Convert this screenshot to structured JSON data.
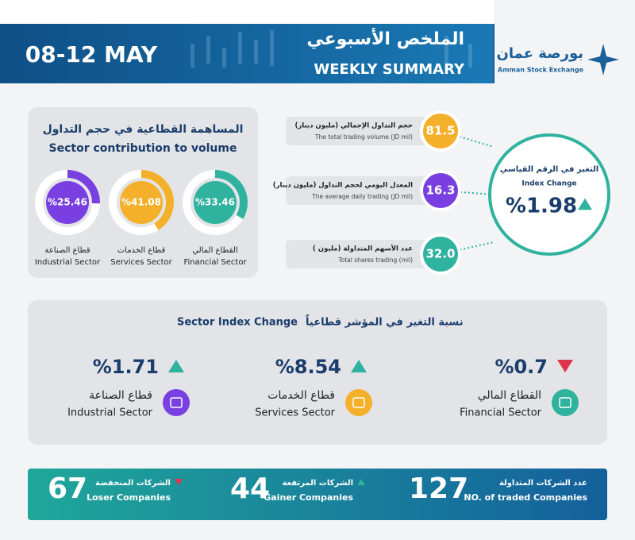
{
  "header": {
    "date": "08-12 MAY",
    "title_ar": "الملخص الأسبوعي",
    "title_en": "WEEKLY SUMMARY",
    "logo_ar": "بورصة عمان",
    "logo_en": "Amman Stock Exchange"
  },
  "sector_contribution": {
    "title_ar": "المساهمة القطاعية في حجم التداول",
    "title_en": "Sector contribution to volume",
    "sectors": [
      {
        "value": 25.46,
        "label": "%25.46",
        "name_ar": "قطاع الصناعة",
        "name_en": "Industrial Sector",
        "color": "#7a3fe0"
      },
      {
        "value": 41.08,
        "label": "%41.08",
        "name_ar": "قطاع الخدمات",
        "name_en": "Services Sector",
        "color": "#f4b02a"
      },
      {
        "value": 33.46,
        "label": "%33.46",
        "name_ar": "القطاع المالي",
        "name_en": "Financial Sector",
        "color": "#2fb29e"
      }
    ]
  },
  "indicators": [
    {
      "value": "81.5",
      "label_ar": "حجم التداول الإجمالي (مليون دينار)",
      "label_en": "The total trading volume (JD mil)",
      "color": "#f4b02a"
    },
    {
      "value": "16.3",
      "label_ar": "المعدل اليومي لحجم التداول (مليون دينار)",
      "label_en": "The average daily trading (JD mil)",
      "color": "#7a3fe0"
    },
    {
      "value": "32.0",
      "label_ar": "عدد الأسهم المتداولة (مليون )",
      "label_en": "Total shares trading (mil)",
      "color": "#2fb29e"
    }
  ],
  "index_change": {
    "label_ar": "التغير في الرقم القياسي",
    "label_en": "Index Change",
    "value": "%1.98",
    "direction": "up"
  },
  "sector_index": {
    "title_en": "Sector Index Change",
    "title_ar": "نسبة التغير في المؤشر قطاعياً",
    "sectors": [
      {
        "value": "%1.71",
        "direction": "up",
        "name_ar": "قطاع الصناعة",
        "name_en": "Industrial Sector",
        "color": "#7a3fe0"
      },
      {
        "value": "%8.54",
        "direction": "up",
        "name_ar": "قطاع الخدمات",
        "name_en": "Services Sector",
        "color": "#f4b02a"
      },
      {
        "value": "%0.7",
        "direction": "down",
        "name_ar": "القطاع المالي",
        "name_en": "Financial Sector",
        "color": "#2fb29e"
      }
    ]
  },
  "footer": [
    {
      "value": "67",
      "label_ar": "الشركات المنخفضة",
      "label_en": "Loser Companies",
      "direction": "down"
    },
    {
      "value": "44",
      "label_ar": "الشركات المرتفعة",
      "label_en": "Gainer Companies",
      "direction": "up"
    },
    {
      "value": "127",
      "label_ar": "عدد الشركات المتداولة",
      "label_en": "NO. of traded Companies",
      "direction": null
    }
  ]
}
